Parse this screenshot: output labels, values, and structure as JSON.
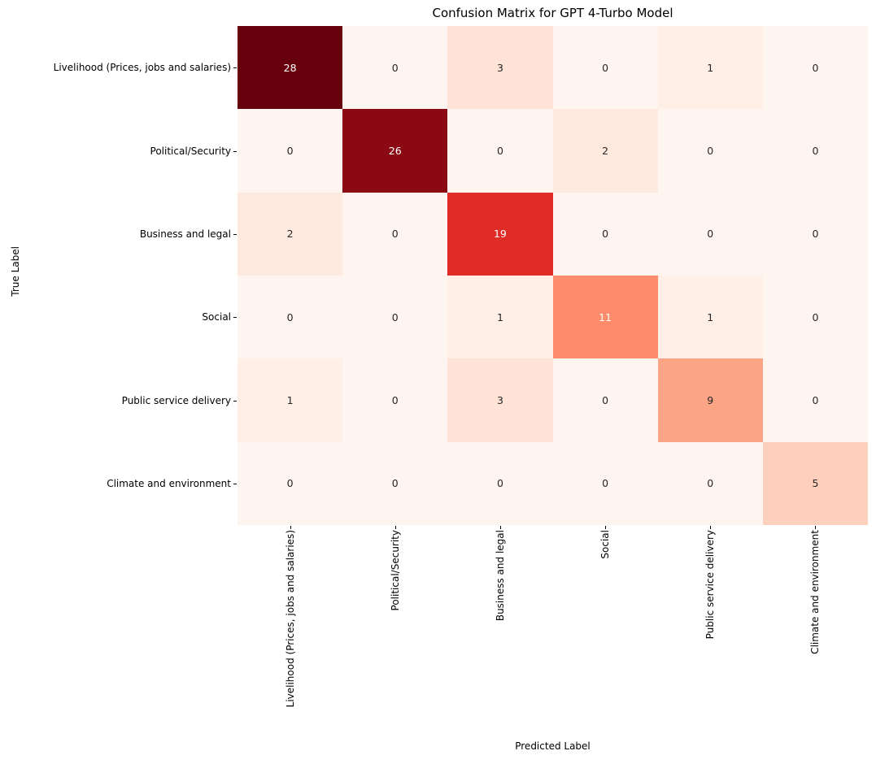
{
  "figure": {
    "background": "#ffffff"
  },
  "chart_data": {
    "type": "heatmap",
    "title": "Confusion Matrix for GPT 4-Turbo Model",
    "xlabel": "Predicted Label",
    "ylabel": "True Label",
    "categories": [
      "Livelihood (Prices, jobs and salaries)",
      "Political/Security",
      "Business and legal",
      "Social",
      "Public service delivery",
      "Climate and environment"
    ],
    "matrix": [
      [
        28,
        0,
        3,
        0,
        1,
        0
      ],
      [
        0,
        26,
        0,
        2,
        0,
        0
      ],
      [
        2,
        0,
        19,
        0,
        0,
        0
      ],
      [
        0,
        0,
        1,
        11,
        1,
        0
      ],
      [
        1,
        0,
        3,
        0,
        9,
        0
      ],
      [
        0,
        0,
        0,
        0,
        0,
        5
      ]
    ],
    "colormap": {
      "name": "Reds",
      "vmin": 0,
      "vmax": 28,
      "min_color": "#fff5f0",
      "max_color": "#67000d"
    },
    "cell_colors": [
      [
        "#67000d",
        "#fff5f0",
        "#fee3d6",
        "#fff5f0",
        "#ffefe7",
        "#fff5f0"
      ],
      [
        "#fff5f0",
        "#8a0912",
        "#fff5f0",
        "#fee9df",
        "#fff5f0",
        "#fff5f0"
      ],
      [
        "#fee9df",
        "#fff5f0",
        "#e02c26",
        "#fff5f0",
        "#fff5f0",
        "#fff5f0"
      ],
      [
        "#fff5f0",
        "#fff5f0",
        "#ffefe7",
        "#fc8c6c",
        "#ffefe7",
        "#fff5f0"
      ],
      [
        "#ffefe7",
        "#fff5f0",
        "#fee3d6",
        "#fff5f0",
        "#fca486",
        "#fff5f0"
      ],
      [
        "#fff5f0",
        "#fff5f0",
        "#fff5f0",
        "#fff5f0",
        "#fff5f0",
        "#fdd0bd"
      ]
    ],
    "text_colors": [
      [
        "#ffffff",
        "#262626",
        "#262626",
        "#262626",
        "#262626",
        "#262626"
      ],
      [
        "#262626",
        "#ffffff",
        "#262626",
        "#262626",
        "#262626",
        "#262626"
      ],
      [
        "#262626",
        "#262626",
        "#ffffff",
        "#262626",
        "#262626",
        "#262626"
      ],
      [
        "#262626",
        "#262626",
        "#262626",
        "#ffffff",
        "#262626",
        "#262626"
      ],
      [
        "#262626",
        "#262626",
        "#262626",
        "#262626",
        "#262626",
        "#262626"
      ],
      [
        "#262626",
        "#262626",
        "#262626",
        "#262626",
        "#262626",
        "#262626"
      ]
    ],
    "legend": "none",
    "grid": false,
    "colorbar": false
  }
}
